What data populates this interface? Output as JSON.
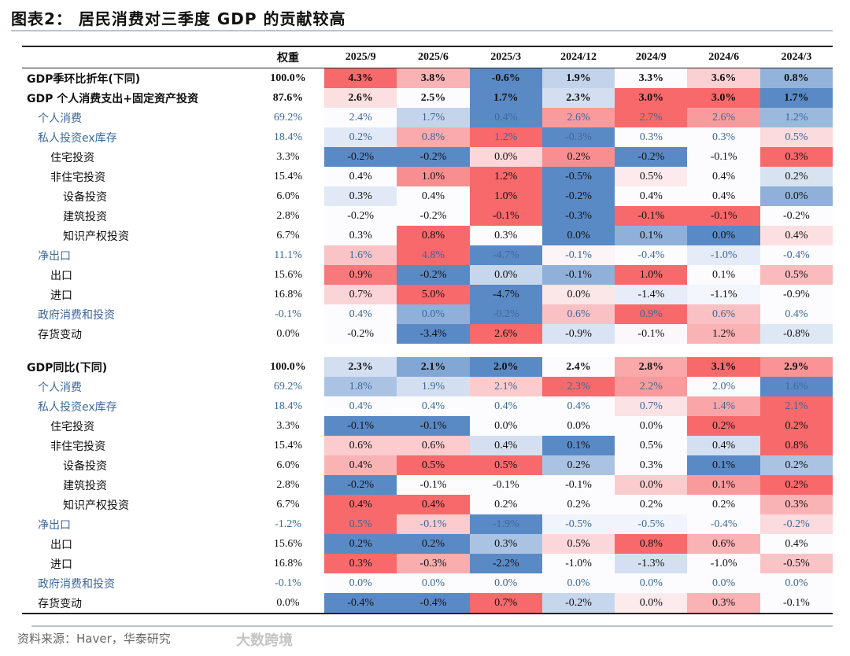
{
  "title": "图表2：  居民消费对三季度 GDP 的贡献较高",
  "source": "资料来源：Haver，华泰研究",
  "watermark": "大数跨境",
  "colors": {
    "high": "#f8696b",
    "mid": "#fcfcff",
    "low": "#5a8ac6",
    "category_text": "#3d6898"
  },
  "header": {
    "weight": "权重",
    "periods": [
      "2025/9",
      "2025/6",
      "2025/3",
      "2024/12",
      "2024/9",
      "2024/6",
      "2024/3"
    ]
  },
  "sections": [
    {
      "rows": [
        {
          "label": "GDP季环比折年(下同)",
          "weight": "100.0%",
          "values": [
            "4.3%",
            "3.8%",
            "-0.6%",
            "1.9%",
            "3.3%",
            "3.6%",
            "0.8%"
          ],
          "style": "bold",
          "indent": 0
        },
        {
          "label": "GDP 个人消费支出+固定资产投资",
          "weight": "87.6%",
          "values": [
            "2.6%",
            "2.5%",
            "1.7%",
            "2.3%",
            "3.0%",
            "3.0%",
            "1.7%"
          ],
          "style": "bold",
          "indent": 0
        },
        {
          "label": "个人消费",
          "weight": "69.2%",
          "values": [
            "2.4%",
            "1.7%",
            "0.4%",
            "2.6%",
            "2.7%",
            "2.6%",
            "1.2%"
          ],
          "style": "blue",
          "indent": 1
        },
        {
          "label": "私人投资ex库存",
          "weight": "18.4%",
          "values": [
            "0.2%",
            "0.8%",
            "1.2%",
            "-0.3%",
            "0.3%",
            "0.3%",
            "0.5%"
          ],
          "style": "blue",
          "indent": 1
        },
        {
          "label": "住宅投资",
          "weight": "3.3%",
          "values": [
            "-0.2%",
            "-0.2%",
            "0.0%",
            "0.2%",
            "-0.2%",
            "-0.1%",
            "0.3%"
          ],
          "style": "",
          "indent": 2
        },
        {
          "label": "非住宅投资",
          "weight": "15.4%",
          "values": [
            "0.4%",
            "1.0%",
            "1.2%",
            "-0.5%",
            "0.5%",
            "0.4%",
            "0.2%"
          ],
          "style": "",
          "indent": 2
        },
        {
          "label": "设备投资",
          "weight": "6.0%",
          "values": [
            "0.3%",
            "0.4%",
            "1.0%",
            "-0.2%",
            "0.4%",
            "0.4%",
            "0.0%"
          ],
          "style": "",
          "indent": 3
        },
        {
          "label": "建筑投资",
          "weight": "2.8%",
          "values": [
            "-0.2%",
            "-0.2%",
            "-0.1%",
            "-0.3%",
            "-0.1%",
            "-0.1%",
            "-0.2%"
          ],
          "style": "",
          "indent": 3
        },
        {
          "label": "知识产权投资",
          "weight": "6.7%",
          "values": [
            "0.3%",
            "0.8%",
            "0.3%",
            "0.0%",
            "0.1%",
            "0.0%",
            "0.4%"
          ],
          "style": "",
          "indent": 3
        },
        {
          "label": "净出口",
          "weight": "11.1%",
          "values": [
            "1.6%",
            "4.8%",
            "-4.7%",
            "-0.1%",
            "-0.4%",
            "-1.0%",
            "-0.4%"
          ],
          "style": "blue",
          "indent": 1
        },
        {
          "label": "出口",
          "weight": "15.6%",
          "values": [
            "0.9%",
            "-0.2%",
            "0.0%",
            "-0.1%",
            "1.0%",
            "0.1%",
            "0.5%"
          ],
          "style": "",
          "indent": 2
        },
        {
          "label": "进口",
          "weight": "16.8%",
          "values": [
            "0.7%",
            "5.0%",
            "-4.7%",
            "0.0%",
            "-1.4%",
            "-1.1%",
            "-0.9%"
          ],
          "style": "",
          "indent": 2
        },
        {
          "label": "政府消费和投资",
          "weight": "-0.1%",
          "values": [
            "0.4%",
            "0.0%",
            "-0.2%",
            "0.6%",
            "0.9%",
            "0.6%",
            "0.4%"
          ],
          "style": "blue",
          "indent": 1
        },
        {
          "label": "存货变动",
          "weight": "0.0%",
          "values": [
            "-0.2%",
            "-3.4%",
            "2.6%",
            "-0.9%",
            "-0.1%",
            "1.2%",
            "-0.8%"
          ],
          "style": "",
          "indent": 1
        }
      ]
    },
    {
      "rows": [
        {
          "label": "GDP同比(下同)",
          "weight": "100.0%",
          "values": [
            "2.3%",
            "2.1%",
            "2.0%",
            "2.4%",
            "2.8%",
            "3.1%",
            "2.9%"
          ],
          "style": "bold",
          "indent": 0
        },
        {
          "label": "个人消费",
          "weight": "69.2%",
          "values": [
            "1.8%",
            "1.9%",
            "2.1%",
            "2.3%",
            "2.2%",
            "2.0%",
            "1.6%"
          ],
          "style": "blue",
          "indent": 1
        },
        {
          "label": "私人投资ex库存",
          "weight": "18.4%",
          "values": [
            "0.4%",
            "0.4%",
            "0.4%",
            "0.4%",
            "0.7%",
            "1.4%",
            "2.1%"
          ],
          "style": "blue",
          "indent": 1
        },
        {
          "label": "住宅投资",
          "weight": "3.3%",
          "values": [
            "-0.1%",
            "-0.1%",
            "0.0%",
            "0.0%",
            "0.0%",
            "0.2%",
            "0.2%"
          ],
          "style": "",
          "indent": 2
        },
        {
          "label": "非住宅投资",
          "weight": "15.4%",
          "values": [
            "0.6%",
            "0.6%",
            "0.4%",
            "0.1%",
            "0.5%",
            "0.4%",
            "0.8%"
          ],
          "style": "",
          "indent": 2
        },
        {
          "label": "设备投资",
          "weight": "6.0%",
          "values": [
            "0.4%",
            "0.5%",
            "0.5%",
            "0.2%",
            "0.3%",
            "0.1%",
            "0.2%"
          ],
          "style": "",
          "indent": 3
        },
        {
          "label": "建筑投资",
          "weight": "2.8%",
          "values": [
            "-0.2%",
            "-0.1%",
            "-0.1%",
            "-0.1%",
            "0.0%",
            "0.1%",
            "0.2%"
          ],
          "style": "",
          "indent": 3
        },
        {
          "label": "知识产权投资",
          "weight": "6.7%",
          "values": [
            "0.4%",
            "0.4%",
            "0.2%",
            "0.2%",
            "0.2%",
            "0.2%",
            "0.3%"
          ],
          "style": "",
          "indent": 3
        },
        {
          "label": "净出口",
          "weight": "-1.2%",
          "values": [
            "0.5%",
            "-0.1%",
            "-1.9%",
            "-0.5%",
            "-0.5%",
            "-0.4%",
            "-0.2%"
          ],
          "style": "blue",
          "indent": 1
        },
        {
          "label": "出口",
          "weight": "15.6%",
          "values": [
            "0.2%",
            "0.2%",
            "0.3%",
            "0.5%",
            "0.8%",
            "0.6%",
            "0.4%"
          ],
          "style": "",
          "indent": 2
        },
        {
          "label": "进口",
          "weight": "16.8%",
          "values": [
            "0.3%",
            "-0.3%",
            "-2.2%",
            "-1.0%",
            "-1.3%",
            "-1.0%",
            "-0.5%"
          ],
          "style": "",
          "indent": 2
        },
        {
          "label": "政府消费和投资",
          "weight": "-0.1%",
          "values": [
            "0.0%",
            "0.0%",
            "0.0%",
            "0.0%",
            "0.0%",
            "0.0%",
            "0.0%"
          ],
          "style": "blue",
          "indent": 1
        },
        {
          "label": "存货变动",
          "weight": "0.0%",
          "values": [
            "-0.4%",
            "-0.4%",
            "0.7%",
            "-0.2%",
            "0.0%",
            "0.3%",
            "-0.1%"
          ],
          "style": "",
          "indent": 1
        }
      ]
    }
  ]
}
